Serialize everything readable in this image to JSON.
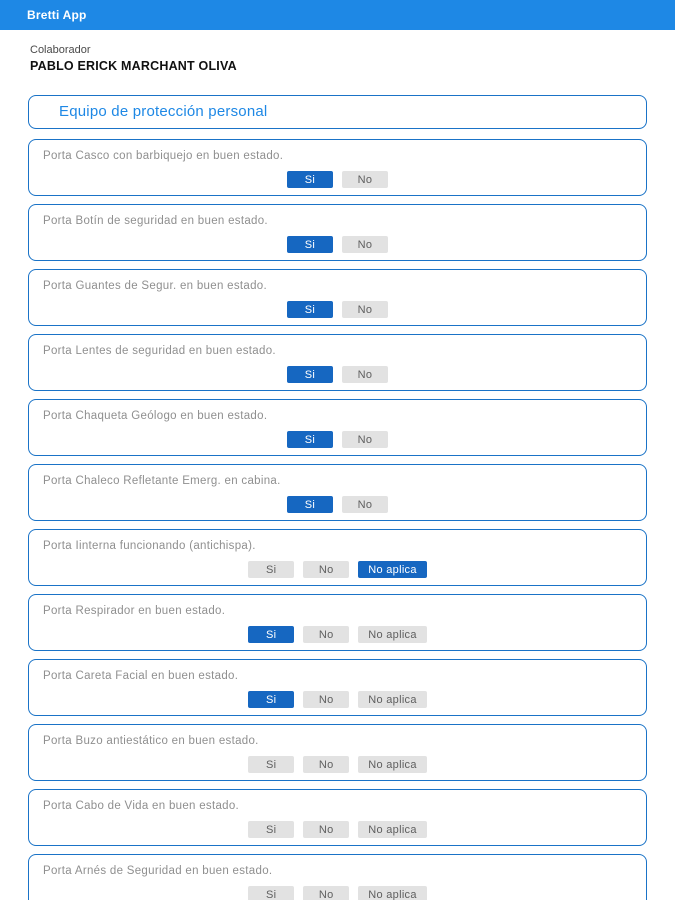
{
  "app": {
    "title": "Bretti App"
  },
  "collaborator": {
    "label": "Colaborador",
    "name": "PABLO ERICK MARCHANT OLIVA"
  },
  "section": {
    "title": "Equipo de protección personal"
  },
  "colors": {
    "header_blue": "#1e88e5",
    "card_border_blue": "#1a73c7",
    "selected_button_blue": "#1667c1",
    "unselected_button_gray": "#e2e2e2"
  },
  "questions": [
    {
      "text": "Porta Casco con barbiquejo en buen estado.",
      "options": [
        "Si",
        "No"
      ],
      "selected": "Si"
    },
    {
      "text": "Porta Botín de seguridad en buen estado.",
      "options": [
        "Si",
        "No"
      ],
      "selected": "Si"
    },
    {
      "text": "Porta Guantes de Segur. en buen estado.",
      "options": [
        "Si",
        "No"
      ],
      "selected": "Si"
    },
    {
      "text": "Porta Lentes de seguridad en buen estado.",
      "options": [
        "Si",
        "No"
      ],
      "selected": "Si"
    },
    {
      "text": "Porta Chaqueta Geólogo en buen estado.",
      "options": [
        "Si",
        "No"
      ],
      "selected": "Si"
    },
    {
      "text": "Porta Chaleco Refletante Emerg. en cabina.",
      "options": [
        "Si",
        "No"
      ],
      "selected": "Si"
    },
    {
      "text": "Porta Iinterna funcionando (antichispa).",
      "options": [
        "Si",
        "No",
        "No aplica"
      ],
      "selected": "No aplica"
    },
    {
      "text": "Porta Respirador en buen estado.",
      "options": [
        "Si",
        "No",
        "No aplica"
      ],
      "selected": "Si"
    },
    {
      "text": "Porta Careta Facial en buen estado.",
      "options": [
        "Si",
        "No",
        "No aplica"
      ],
      "selected": "Si"
    },
    {
      "text": "Porta Buzo antiestático en buen estado.",
      "options": [
        "Si",
        "No",
        "No aplica"
      ],
      "selected": null
    },
    {
      "text": "Porta Cabo de Vida en buen estado.",
      "options": [
        "Si",
        "No",
        "No aplica"
      ],
      "selected": null
    },
    {
      "text": "Porta Arnés de Seguridad en buen estado.",
      "options": [
        "Si",
        "No",
        "No aplica"
      ],
      "selected": null
    }
  ]
}
